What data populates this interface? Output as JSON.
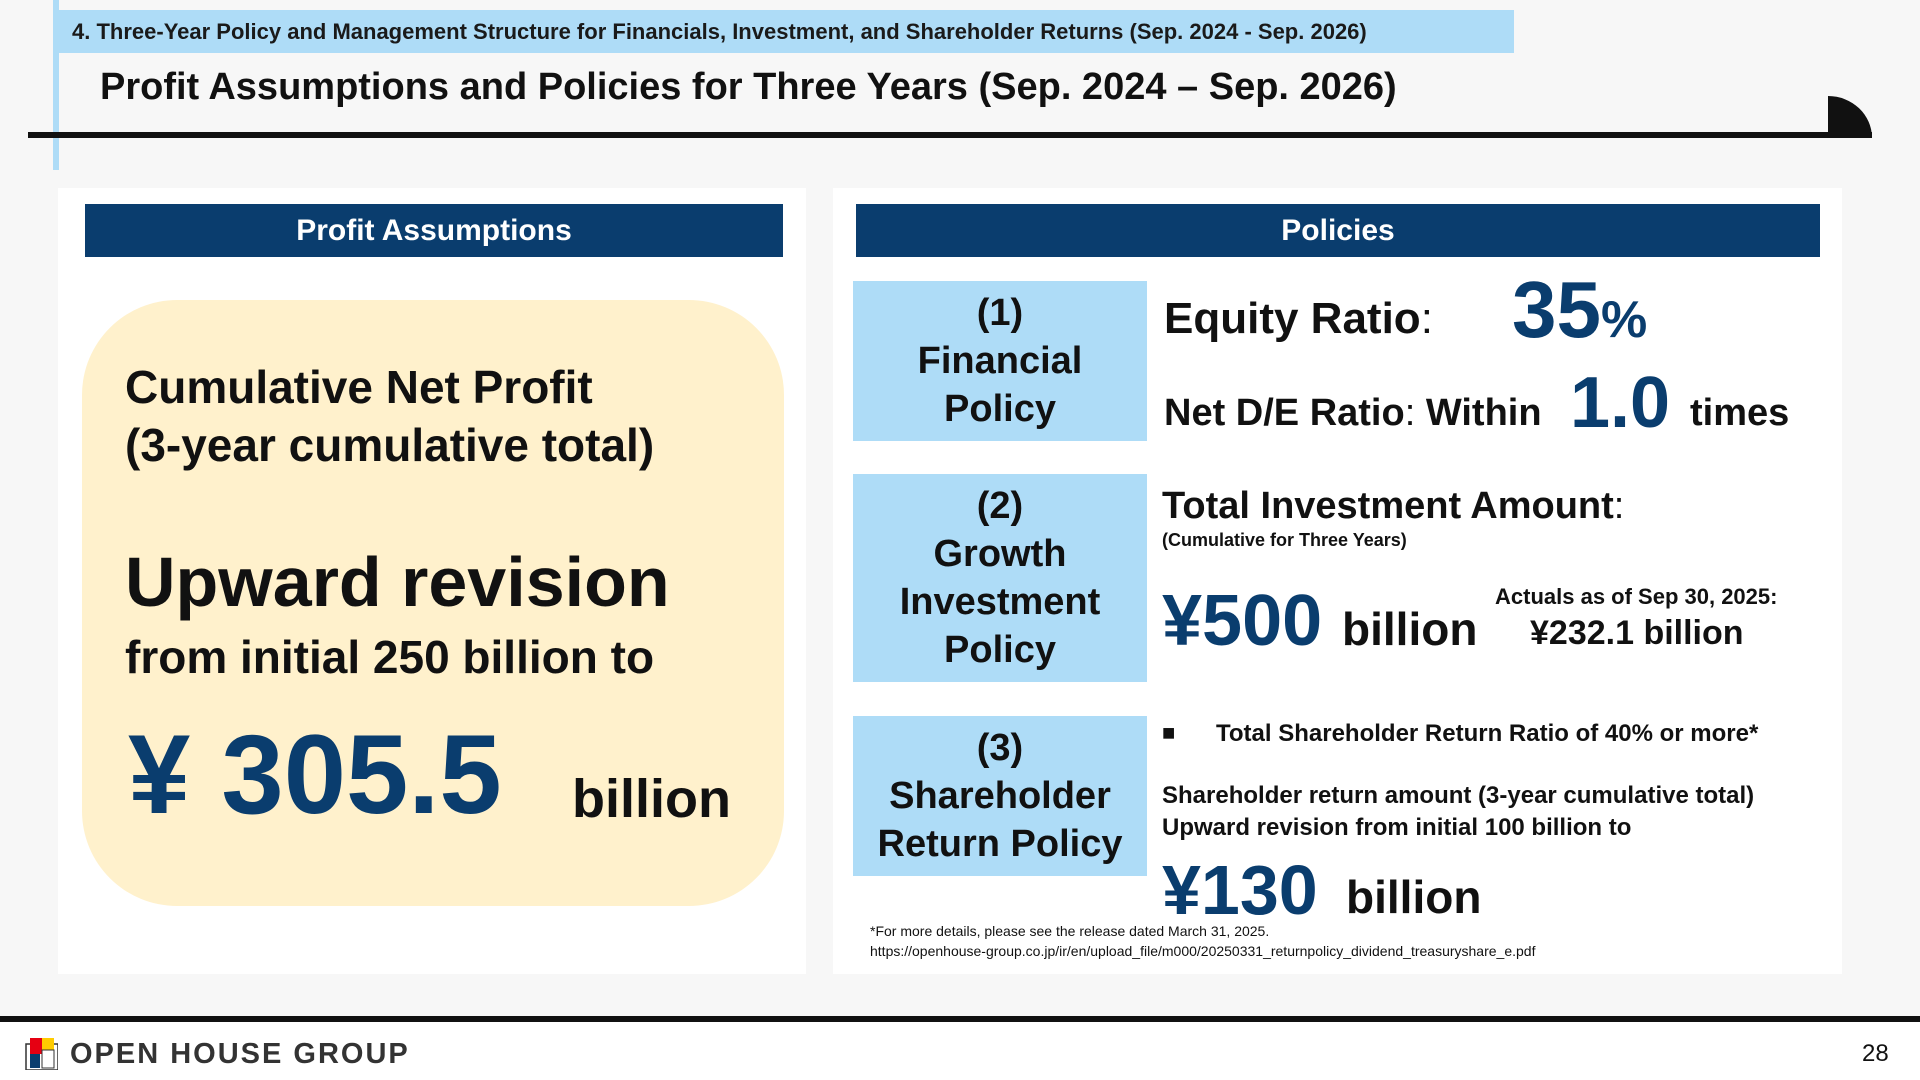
{
  "header": {
    "section": "4. Three-Year Policy and Management Structure for Financials, Investment, and Shareholder Returns (Sep. 2024 - Sep. 2026)",
    "title": "Profit Assumptions and Policies for Three Years (Sep. 2024 – Sep. 2026)"
  },
  "left_panel": {
    "heading": "Profit Assumptions",
    "line1": "Cumulative Net Profit",
    "line2": "(3-year cumulative total)",
    "upward": "Upward revision",
    "from": "from initial 250 billion to",
    "amount": "¥ 305.5",
    "unit": "billion"
  },
  "right_panel": {
    "heading": "Policies",
    "policy1": {
      "number": "(1)",
      "line1": "Financial",
      "line2": "Policy",
      "equity_label": "Equity Ratio",
      "colon": ":",
      "equity_value": "35",
      "equity_unit": "%",
      "de_label": "Net D/E Ratio",
      "de_within": "Within",
      "de_value": "1.0",
      "de_unit": "times"
    },
    "policy2": {
      "number": "(2)",
      "line1": "Growth",
      "line2": "Investment",
      "line3": "Policy",
      "label": "Total Investment Amount",
      "colon": ":",
      "sub": "(Cumulative for Three Years)",
      "amount": "¥500",
      "unit": "billion",
      "actuals_label": "Actuals as of Sep 30, 2025:",
      "actuals_value": "¥232.1 billion"
    },
    "policy3": {
      "number": "(3)",
      "line1": "Shareholder",
      "line2": "Return Policy",
      "bullet": "■",
      "ratio_text": "Total Shareholder Return Ratio of 40% or more*",
      "amount_label1": "Shareholder return amount (3-year cumulative total)",
      "amount_label2": "Upward revision from initial 100 billion to",
      "amount": "¥130",
      "unit": "billion"
    },
    "footnote1": "*For more details, please see the release dated March 31, 2025.",
    "footnote2": "https://openhouse-group.co.jp/ir/en/upload_file/m000/20250331_returnpolicy_dividend_treasuryshare_e.pdf"
  },
  "footer": {
    "logo": "OPEN HOUSE GROUP",
    "page": "28"
  },
  "colors": {
    "navy": "#0a3d6e",
    "light_blue": "#aedcf7",
    "cream": "#fff1cc"
  }
}
